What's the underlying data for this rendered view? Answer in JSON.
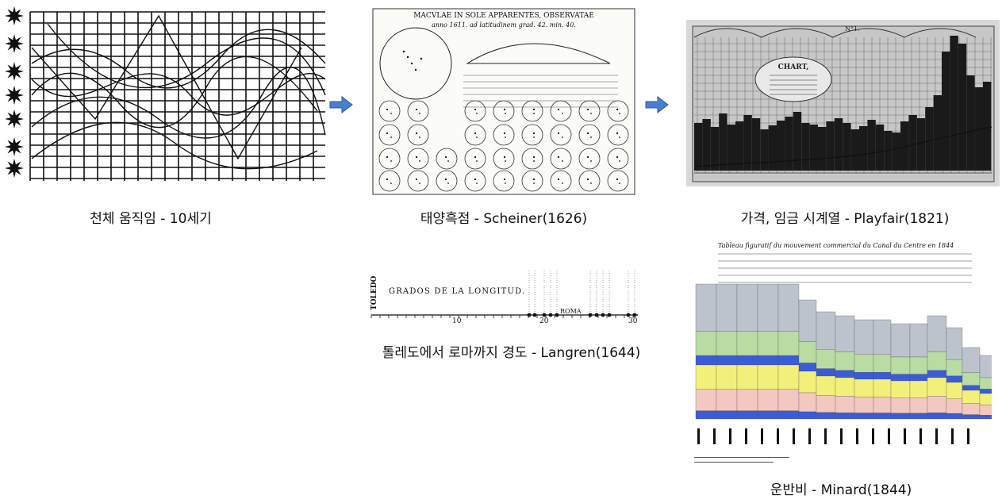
{
  "captions": {
    "celestial": "천체 움직임 - 10세기",
    "scheiner": "태양흑점 - Scheiner(1626)",
    "playfair": "가격, 임금 시계열 - Playfair(1821)",
    "langren": "톨레도에서 로마까지 경도 - Langren(1644)",
    "minard": "운반비 - Minard(1844)"
  },
  "scheiner": {
    "title": "MACVLAE IN SOLE APPARENTES, OBSERVATAE",
    "subtitle": "anno 1611. ad latitudinem grad. 42. min. 40."
  },
  "playfair": {
    "chart_label": "CHART,",
    "no_label": "N°1."
  },
  "langren": {
    "toledo": "TOLEDO",
    "axis_title": "GRADOS DE LA LONGITUD.",
    "roma": "ROMA",
    "tick_10": "10",
    "tick_20": "20",
    "tick_30": "30"
  },
  "minard": {
    "title": "Tableau figuratif du mouvement commercial du Canal du Centre en 1844"
  },
  "colors": {
    "arrow": "#4a7fd0",
    "minard_blue": "#3b5bd8",
    "minard_yellow": "#f2f07a",
    "minard_green": "#b8dca2",
    "minard_pink": "#f2c8c0"
  }
}
